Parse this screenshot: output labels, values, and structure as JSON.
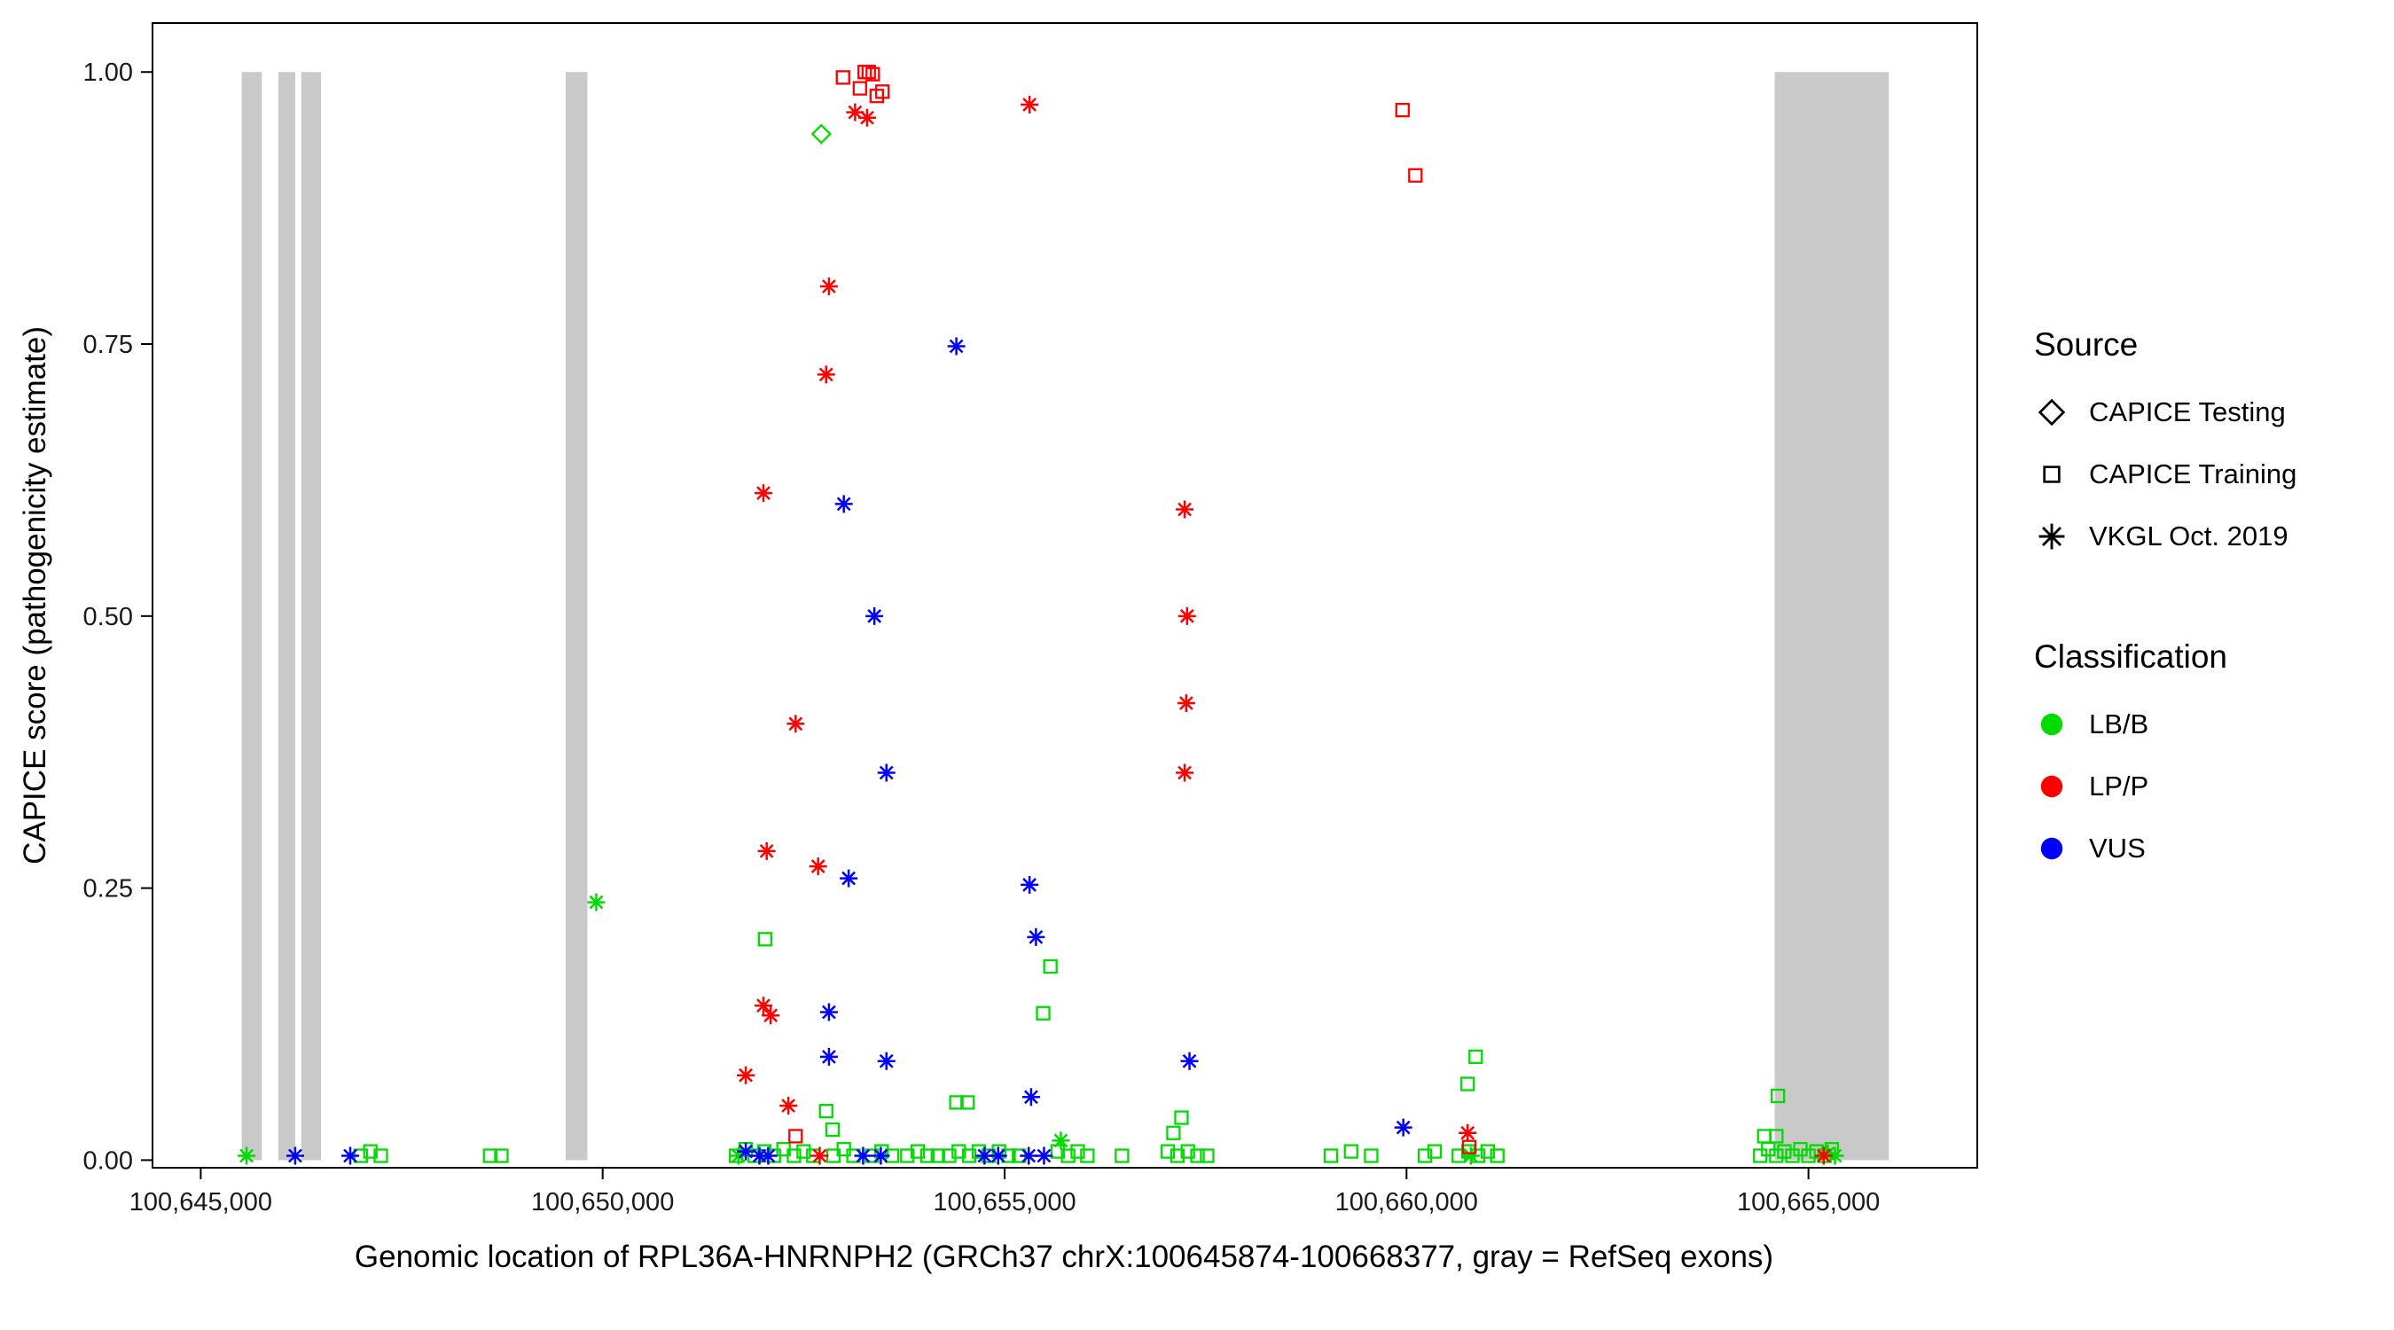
{
  "legend": {
    "source_title": "Source",
    "source_items": [
      {
        "label": "CAPICE Testing",
        "marker": "diamond"
      },
      {
        "label": "CAPICE Training",
        "marker": "square"
      },
      {
        "label": "VKGL Oct. 2019",
        "marker": "asterisk"
      }
    ],
    "classification_title": "Classification",
    "classification_items": [
      {
        "label": "LB/B",
        "color": "#00DB00"
      },
      {
        "label": "LP/P",
        "color": "#FF0000"
      },
      {
        "label": "VUS",
        "color": "#0000FF"
      }
    ]
  },
  "colors": {
    "lbb": "#00DB00",
    "lpp": "#FF0000",
    "vus": "#0000FF",
    "exon": "#C9C9C9"
  },
  "chart_data": {
    "type": "scatter",
    "title": "",
    "xlabel": "Genomic location of RPL36A-HNRNPH2 (GRCh37 chrX:100645874-100668377, gray = RefSeq exons)",
    "ylabel": "CAPICE score (pathogenicity estimate)",
    "xlim": [
      100644400,
      100667100
    ],
    "ylim": [
      -0.007,
      1.045
    ],
    "grid": false,
    "legend_position": "right",
    "x_ticks": [
      {
        "value": 100645000,
        "label": "100,645,000"
      },
      {
        "value": 100650000,
        "label": "100,650,000"
      },
      {
        "value": 100655000,
        "label": "100,655,000"
      },
      {
        "value": 100660000,
        "label": "100,660,000"
      },
      {
        "value": 100665000,
        "label": "100,665,000"
      }
    ],
    "y_ticks": [
      {
        "value": 0.0,
        "label": "0.00"
      },
      {
        "value": 0.25,
        "label": "0.25"
      },
      {
        "value": 0.5,
        "label": "0.50"
      },
      {
        "value": 0.75,
        "label": "0.75"
      },
      {
        "value": 1.0,
        "label": "1.00"
      }
    ],
    "exon_color": "#C9C9C9",
    "exons": [
      [
        100645510,
        100645760
      ],
      [
        100645965,
        100646175
      ],
      [
        100646250,
        100646495
      ],
      [
        100649540,
        100649810
      ],
      [
        100664580,
        100666000
      ]
    ],
    "series": [
      {
        "name": "CAPICE Training LB/B",
        "source": "CAPICE Training",
        "classification": "LB/B",
        "marker": "square",
        "color": "#00DB00",
        "points": [
          [
            100646990,
            0.004
          ],
          [
            100647110,
            0.008
          ],
          [
            100647240,
            0.004
          ],
          [
            100648600,
            0.004
          ],
          [
            100648740,
            0.004
          ],
          [
            100651660,
            0.004
          ],
          [
            100651780,
            0.01
          ],
          [
            100651890,
            0.004
          ],
          [
            100652010,
            0.008
          ],
          [
            100652130,
            0.004
          ],
          [
            100652250,
            0.01
          ],
          [
            100652380,
            0.004
          ],
          [
            100652500,
            0.008
          ],
          [
            100652620,
            0.004
          ],
          [
            100652870,
            0.004
          ],
          [
            100653000,
            0.01
          ],
          [
            100653120,
            0.004
          ],
          [
            100653350,
            0.004
          ],
          [
            100653470,
            0.008
          ],
          [
            100653600,
            0.004
          ],
          [
            100653790,
            0.004
          ],
          [
            100653920,
            0.008
          ],
          [
            100654040,
            0.004
          ],
          [
            100654170,
            0.004
          ],
          [
            100652020,
            0.203
          ],
          [
            100652780,
            0.045
          ],
          [
            100652860,
            0.028
          ],
          [
            100654310,
            0.004
          ],
          [
            100654430,
            0.008
          ],
          [
            100654560,
            0.004
          ],
          [
            100654680,
            0.008
          ],
          [
            100654800,
            0.004
          ],
          [
            100654930,
            0.008
          ],
          [
            100655050,
            0.004
          ],
          [
            100655180,
            0.004
          ],
          [
            100654400,
            0.053
          ],
          [
            100654540,
            0.053
          ],
          [
            100655480,
            0.135
          ],
          [
            100655570,
            0.178
          ],
          [
            100655660,
            0.008
          ],
          [
            100655790,
            0.004
          ],
          [
            100655910,
            0.008
          ],
          [
            100656030,
            0.004
          ],
          [
            100656460,
            0.004
          ],
          [
            100657030,
            0.008
          ],
          [
            100657150,
            0.004
          ],
          [
            100657280,
            0.008
          ],
          [
            100657400,
            0.004
          ],
          [
            100657520,
            0.004
          ],
          [
            100657200,
            0.039
          ],
          [
            100657100,
            0.025
          ],
          [
            100659060,
            0.004
          ],
          [
            100659310,
            0.008
          ],
          [
            100659560,
            0.004
          ],
          [
            100660230,
            0.004
          ],
          [
            100660350,
            0.008
          ],
          [
            100660650,
            0.004
          ],
          [
            100660770,
            0.008
          ],
          [
            100660890,
            0.004
          ],
          [
            100661010,
            0.008
          ],
          [
            100661130,
            0.004
          ],
          [
            100660760,
            0.07
          ],
          [
            100660860,
            0.095
          ],
          [
            100664400,
            0.004
          ],
          [
            100664500,
            0.01
          ],
          [
            100664600,
            0.004
          ],
          [
            100664700,
            0.008
          ],
          [
            100664800,
            0.004
          ],
          [
            100664900,
            0.01
          ],
          [
            100665000,
            0.004
          ],
          [
            100665100,
            0.008
          ],
          [
            100665200,
            0.004
          ],
          [
            100665290,
            0.01
          ],
          [
            100664620,
            0.059
          ],
          [
            100664450,
            0.022
          ],
          [
            100664600,
            0.022
          ]
        ]
      },
      {
        "name": "VKGL LB/B",
        "source": "VKGL Oct. 2019",
        "classification": "LB/B",
        "marker": "asterisk",
        "color": "#00DB00",
        "points": [
          [
            100649920,
            0.237
          ],
          [
            100645570,
            0.004
          ],
          [
            100651690,
            0.004
          ],
          [
            100655700,
            0.018
          ],
          [
            100660800,
            0.004
          ],
          [
            100665240,
            0.006
          ],
          [
            100665330,
            0.004
          ]
        ]
      },
      {
        "name": "CAPICE Testing LB/B",
        "source": "CAPICE Testing",
        "classification": "LB/B",
        "marker": "diamond",
        "color": "#00DB00",
        "points": [
          [
            100652720,
            0.943
          ]
        ]
      },
      {
        "name": "CAPICE Training LP/P",
        "source": "CAPICE Training",
        "classification": "LP/P",
        "marker": "square",
        "color": "#FF0000",
        "points": [
          [
            100652990,
            0.995
          ],
          [
            100653200,
            0.985
          ],
          [
            100653260,
            1.0
          ],
          [
            100653310,
            1.0
          ],
          [
            100653360,
            0.998
          ],
          [
            100653410,
            0.978
          ],
          [
            100653480,
            0.982
          ],
          [
            100659950,
            0.965
          ],
          [
            100660110,
            0.905
          ],
          [
            100652400,
            0.022
          ],
          [
            100660780,
            0.012
          ]
        ]
      },
      {
        "name": "VKGL LP/P",
        "source": "VKGL Oct. 2019",
        "classification": "LP/P",
        "marker": "asterisk",
        "color": "#FF0000",
        "points": [
          [
            100653140,
            0.963
          ],
          [
            100653290,
            0.958
          ],
          [
            100655310,
            0.97
          ],
          [
            100652815,
            0.803
          ],
          [
            100652780,
            0.722
          ],
          [
            100652000,
            0.613
          ],
          [
            100657240,
            0.598
          ],
          [
            100657270,
            0.5
          ],
          [
            100657260,
            0.42
          ],
          [
            100657240,
            0.356
          ],
          [
            100652400,
            0.401
          ],
          [
            100652040,
            0.284
          ],
          [
            100652680,
            0.27
          ],
          [
            100652000,
            0.142
          ],
          [
            100652090,
            0.133
          ],
          [
            100651780,
            0.078
          ],
          [
            100652310,
            0.05
          ],
          [
            100652700,
            0.004
          ],
          [
            100660760,
            0.025
          ],
          [
            100665190,
            0.004
          ]
        ]
      },
      {
        "name": "VKGL VUS",
        "source": "VKGL Oct. 2019",
        "classification": "VUS",
        "marker": "asterisk",
        "color": "#0000FF",
        "points": [
          [
            100654400,
            0.748
          ],
          [
            100653000,
            0.603
          ],
          [
            100653380,
            0.5
          ],
          [
            100653530,
            0.356
          ],
          [
            100653060,
            0.259
          ],
          [
            100655310,
            0.253
          ],
          [
            100655390,
            0.205
          ],
          [
            100652815,
            0.136
          ],
          [
            100652815,
            0.095
          ],
          [
            100653530,
            0.091
          ],
          [
            100657300,
            0.091
          ],
          [
            100655330,
            0.058
          ],
          [
            100659960,
            0.03
          ],
          [
            100646175,
            0.004
          ],
          [
            100646860,
            0.004
          ],
          [
            100651780,
            0.008
          ],
          [
            100651950,
            0.004
          ],
          [
            100652060,
            0.004
          ],
          [
            100653240,
            0.004
          ],
          [
            100653460,
            0.004
          ],
          [
            100654750,
            0.004
          ],
          [
            100654920,
            0.004
          ],
          [
            100655300,
            0.004
          ],
          [
            100655490,
            0.004
          ]
        ]
      }
    ]
  }
}
